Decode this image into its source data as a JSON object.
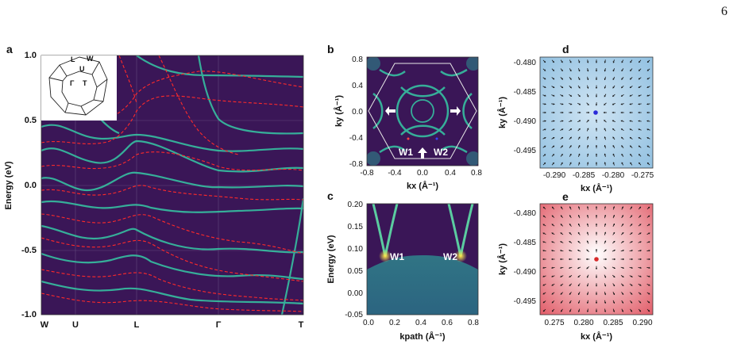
{
  "page_number": "6",
  "panels": {
    "a": {
      "letter": "a",
      "ylabel": "Energy (eV)",
      "yticks": [
        "1.0",
        "0.5",
        "0.0",
        "-0.5",
        "-1.0"
      ],
      "xticks": [
        "W",
        "U",
        "L",
        "Γ",
        "T"
      ],
      "inset_labels": [
        "L",
        "W",
        "U",
        "Γ",
        "T"
      ]
    },
    "b": {
      "letter": "b",
      "xlabel": "kx (Å⁻¹)",
      "ylabel": "ky (Å⁻¹)",
      "xticks": [
        "-0.8",
        "-0.4",
        "0.0",
        "0.4",
        "0.8"
      ],
      "yticks": [
        "0.8",
        "0.4",
        "0.0",
        "-0.4",
        "-0.8"
      ],
      "labels": [
        "W1",
        "W2"
      ]
    },
    "c": {
      "letter": "c",
      "xlabel": "kpath (Å⁻¹)",
      "ylabel": "Energy (eV)",
      "xticks": [
        "0.0",
        "0.2",
        "0.4",
        "0.6",
        "0.8"
      ],
      "yticks": [
        "0.20",
        "0.15",
        "0.10",
        "0.05",
        "0.00",
        "-0.05"
      ],
      "labels": [
        "W1",
        "W2"
      ]
    },
    "d": {
      "letter": "d",
      "xlabel": "kx (Å⁻¹)",
      "ylabel": "ky (Å⁻¹)",
      "xticks": [
        "-0.290",
        "-0.285",
        "-0.280",
        "-0.275"
      ],
      "yticks": [
        "-0.480",
        "-0.485",
        "-0.490",
        "-0.495"
      ],
      "point_color": "#2a2ad8",
      "bg_color": "#9ecbe8"
    },
    "e": {
      "letter": "e",
      "xlabel": "kx (Å⁻¹)",
      "ylabel": "ky (Å⁻¹)",
      "xticks": [
        "0.275",
        "0.280",
        "0.285",
        "0.290"
      ],
      "yticks": [
        "-0.480",
        "-0.485",
        "-0.490",
        "-0.495"
      ],
      "point_color": "#d82a2a",
      "bg_color": "#e0707a"
    }
  },
  "colors": {
    "bg_dark": "#3a1657",
    "band": "#36c9a5",
    "dft_red": "#ff2a2a"
  },
  "chart_data": [
    {
      "type": "line",
      "panel": "a",
      "ylim": [
        -1.0,
        1.0
      ],
      "categories": [
        "W",
        "U",
        "L",
        "Γ",
        "T"
      ],
      "series": [
        {
          "values": [
            0.68,
            0.62,
            0.38,
            0.88,
            0.6
          ]
        },
        {
          "values": [
            0.45,
            0.35,
            0.38,
            0.72,
            0.38
          ]
        },
        {
          "values": [
            0.28,
            0.22,
            0.35,
            0.25,
            0.2
          ]
        },
        {
          "values": [
            0.1,
            0.05,
            -0.02,
            0.0,
            -0.08
          ]
        },
        {
          "values": [
            -0.12,
            -0.25,
            -0.33,
            -0.28,
            -0.3
          ]
        },
        {
          "values": [
            -0.42,
            -0.48,
            -0.4,
            -0.52,
            -0.5
          ]
        },
        {
          "values": [
            -0.62,
            -0.72,
            -0.58,
            -0.72,
            -0.82
          ]
        }
      ]
    },
    {
      "type": "line",
      "panel": "c",
      "ylim": [
        -0.05,
        0.2
      ],
      "xlim": [
        0.0,
        0.85
      ],
      "series": [
        {
          "x": [
            0.05,
            0.14,
            0.23
          ],
          "values": [
            0.2,
            0.09,
            0.2
          ]
        },
        {
          "x": [
            0.6,
            0.71,
            0.82
          ],
          "values": [
            0.2,
            0.09,
            0.2
          ]
        }
      ]
    }
  ]
}
